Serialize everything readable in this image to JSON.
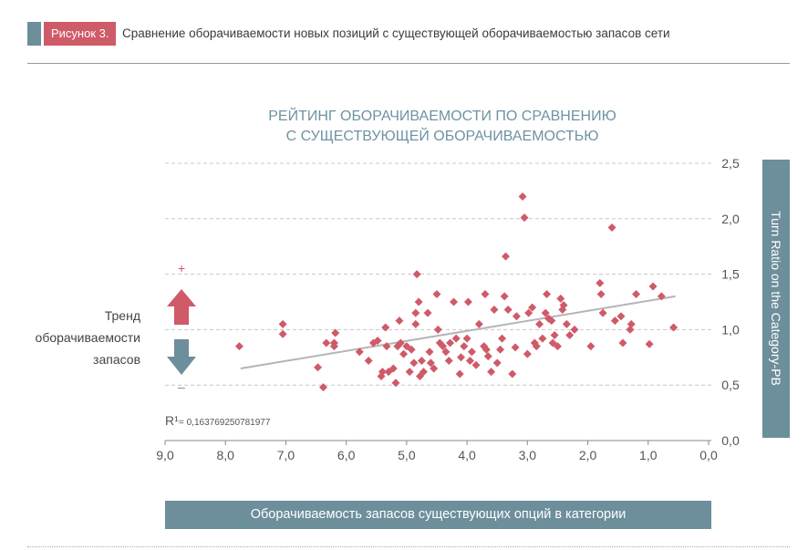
{
  "figure": {
    "label": "Рисунок 3.",
    "caption": "Сравнение оборачиваемости новых позиций с существующей оборачиваемостью запасов сети"
  },
  "legend_trend": {
    "lines": [
      "Тренд",
      "оборачиваемости",
      "запасов"
    ],
    "plus": "+",
    "minus": "–"
  },
  "chart_data": {
    "type": "scatter",
    "title_lines": [
      "РЕЙТИНГ ОБОРАЧИВАЕМОСТИ ПО СРАВНЕНИЮ",
      "С СУЩЕСТВУЮЩЕЙ ОБОРАЧИВАЕМОСТЬЮ"
    ],
    "xlabel": "Оборачиваемость запасов существующих опций в категории",
    "ylabel": "Turn Ratio on the Category-PB",
    "xlim": [
      9.0,
      0.0
    ],
    "ylim": [
      0.0,
      2.5
    ],
    "x_reversed": true,
    "xticks": [
      "9,0",
      "8,0",
      "7,0",
      "6,0",
      "5,0",
      "4,0",
      "3,0",
      "2,0",
      "1,0",
      "0,0"
    ],
    "yticks": [
      "0,0",
      "0,5",
      "1,0",
      "1,5",
      "2,0",
      "2,5"
    ],
    "grid": "horizontal-dashed",
    "r2_label": "R¹",
    "r2_value": "= 0,163769250781977",
    "marker_color": "#cf5a68",
    "trendline_color": "#b5b5b5",
    "trendline": {
      "x": [
        7.75,
        0.55
      ],
      "y": [
        0.65,
        1.3
      ]
    },
    "series": [
      {
        "points": [
          [
            7.77,
            0.85
          ],
          [
            7.05,
            1.05
          ],
          [
            7.05,
            0.96
          ],
          [
            6.47,
            0.66
          ],
          [
            6.38,
            0.48
          ],
          [
            6.33,
            0.88
          ],
          [
            6.2,
            0.85
          ],
          [
            6.18,
            0.97
          ],
          [
            6.2,
            0.88
          ],
          [
            5.78,
            0.8
          ],
          [
            5.63,
            0.72
          ],
          [
            5.55,
            0.88
          ],
          [
            5.48,
            0.9
          ],
          [
            5.42,
            0.58
          ],
          [
            5.4,
            0.62
          ],
          [
            5.35,
            1.02
          ],
          [
            5.33,
            0.85
          ],
          [
            5.3,
            0.62
          ],
          [
            5.22,
            0.65
          ],
          [
            5.18,
            0.52
          ],
          [
            5.15,
            0.85
          ],
          [
            5.12,
            1.08
          ],
          [
            5.1,
            0.88
          ],
          [
            5.05,
            0.78
          ],
          [
            5.0,
            0.85
          ],
          [
            4.95,
            0.62
          ],
          [
            4.92,
            0.82
          ],
          [
            4.88,
            0.7
          ],
          [
            4.85,
            1.05
          ],
          [
            4.85,
            1.15
          ],
          [
            4.83,
            1.5
          ],
          [
            4.8,
            1.25
          ],
          [
            4.78,
            0.58
          ],
          [
            4.75,
            0.72
          ],
          [
            4.72,
            0.62
          ],
          [
            4.65,
            1.15
          ],
          [
            4.62,
            0.8
          ],
          [
            4.6,
            0.7
          ],
          [
            4.55,
            0.65
          ],
          [
            4.5,
            1.32
          ],
          [
            4.48,
            1.0
          ],
          [
            4.45,
            0.88
          ],
          [
            4.4,
            0.85
          ],
          [
            4.35,
            0.8
          ],
          [
            4.3,
            0.72
          ],
          [
            4.28,
            0.88
          ],
          [
            4.22,
            1.25
          ],
          [
            4.18,
            0.92
          ],
          [
            4.12,
            0.6
          ],
          [
            4.1,
            0.75
          ],
          [
            4.05,
            0.85
          ],
          [
            4.0,
            0.92
          ],
          [
            3.98,
            1.25
          ],
          [
            3.95,
            0.72
          ],
          [
            3.92,
            0.8
          ],
          [
            3.85,
            0.68
          ],
          [
            3.8,
            1.05
          ],
          [
            3.72,
            0.85
          ],
          [
            3.7,
            1.32
          ],
          [
            3.68,
            0.82
          ],
          [
            3.65,
            0.76
          ],
          [
            3.6,
            0.62
          ],
          [
            3.55,
            1.18
          ],
          [
            3.5,
            0.7
          ],
          [
            3.45,
            0.82
          ],
          [
            3.42,
            0.92
          ],
          [
            3.38,
            1.3
          ],
          [
            3.36,
            1.66
          ],
          [
            3.32,
            1.18
          ],
          [
            3.25,
            0.6
          ],
          [
            3.2,
            0.84
          ],
          [
            3.18,
            1.12
          ],
          [
            3.08,
            2.2
          ],
          [
            3.05,
            2.01
          ],
          [
            3.0,
            0.78
          ],
          [
            2.98,
            1.15
          ],
          [
            2.92,
            1.2
          ],
          [
            2.88,
            0.88
          ],
          [
            2.85,
            0.85
          ],
          [
            2.8,
            1.05
          ],
          [
            2.75,
            0.92
          ],
          [
            2.7,
            1.15
          ],
          [
            2.68,
            1.32
          ],
          [
            2.65,
            1.1
          ],
          [
            2.6,
            1.08
          ],
          [
            2.58,
            0.88
          ],
          [
            2.55,
            0.95
          ],
          [
            2.5,
            0.85
          ],
          [
            2.45,
            1.28
          ],
          [
            2.42,
            1.18
          ],
          [
            2.4,
            1.22
          ],
          [
            2.35,
            1.05
          ],
          [
            2.3,
            0.95
          ],
          [
            2.22,
            1.0
          ],
          [
            1.95,
            0.85
          ],
          [
            1.8,
            1.42
          ],
          [
            1.78,
            1.32
          ],
          [
            1.75,
            1.15
          ],
          [
            1.6,
            1.92
          ],
          [
            1.55,
            1.08
          ],
          [
            1.45,
            1.12
          ],
          [
            1.42,
            0.88
          ],
          [
            1.3,
            1.0
          ],
          [
            1.28,
            1.05
          ],
          [
            1.2,
            1.32
          ],
          [
            0.98,
            0.87
          ],
          [
            0.92,
            1.39
          ],
          [
            0.78,
            1.3
          ],
          [
            0.58,
            1.02
          ]
        ]
      }
    ]
  }
}
